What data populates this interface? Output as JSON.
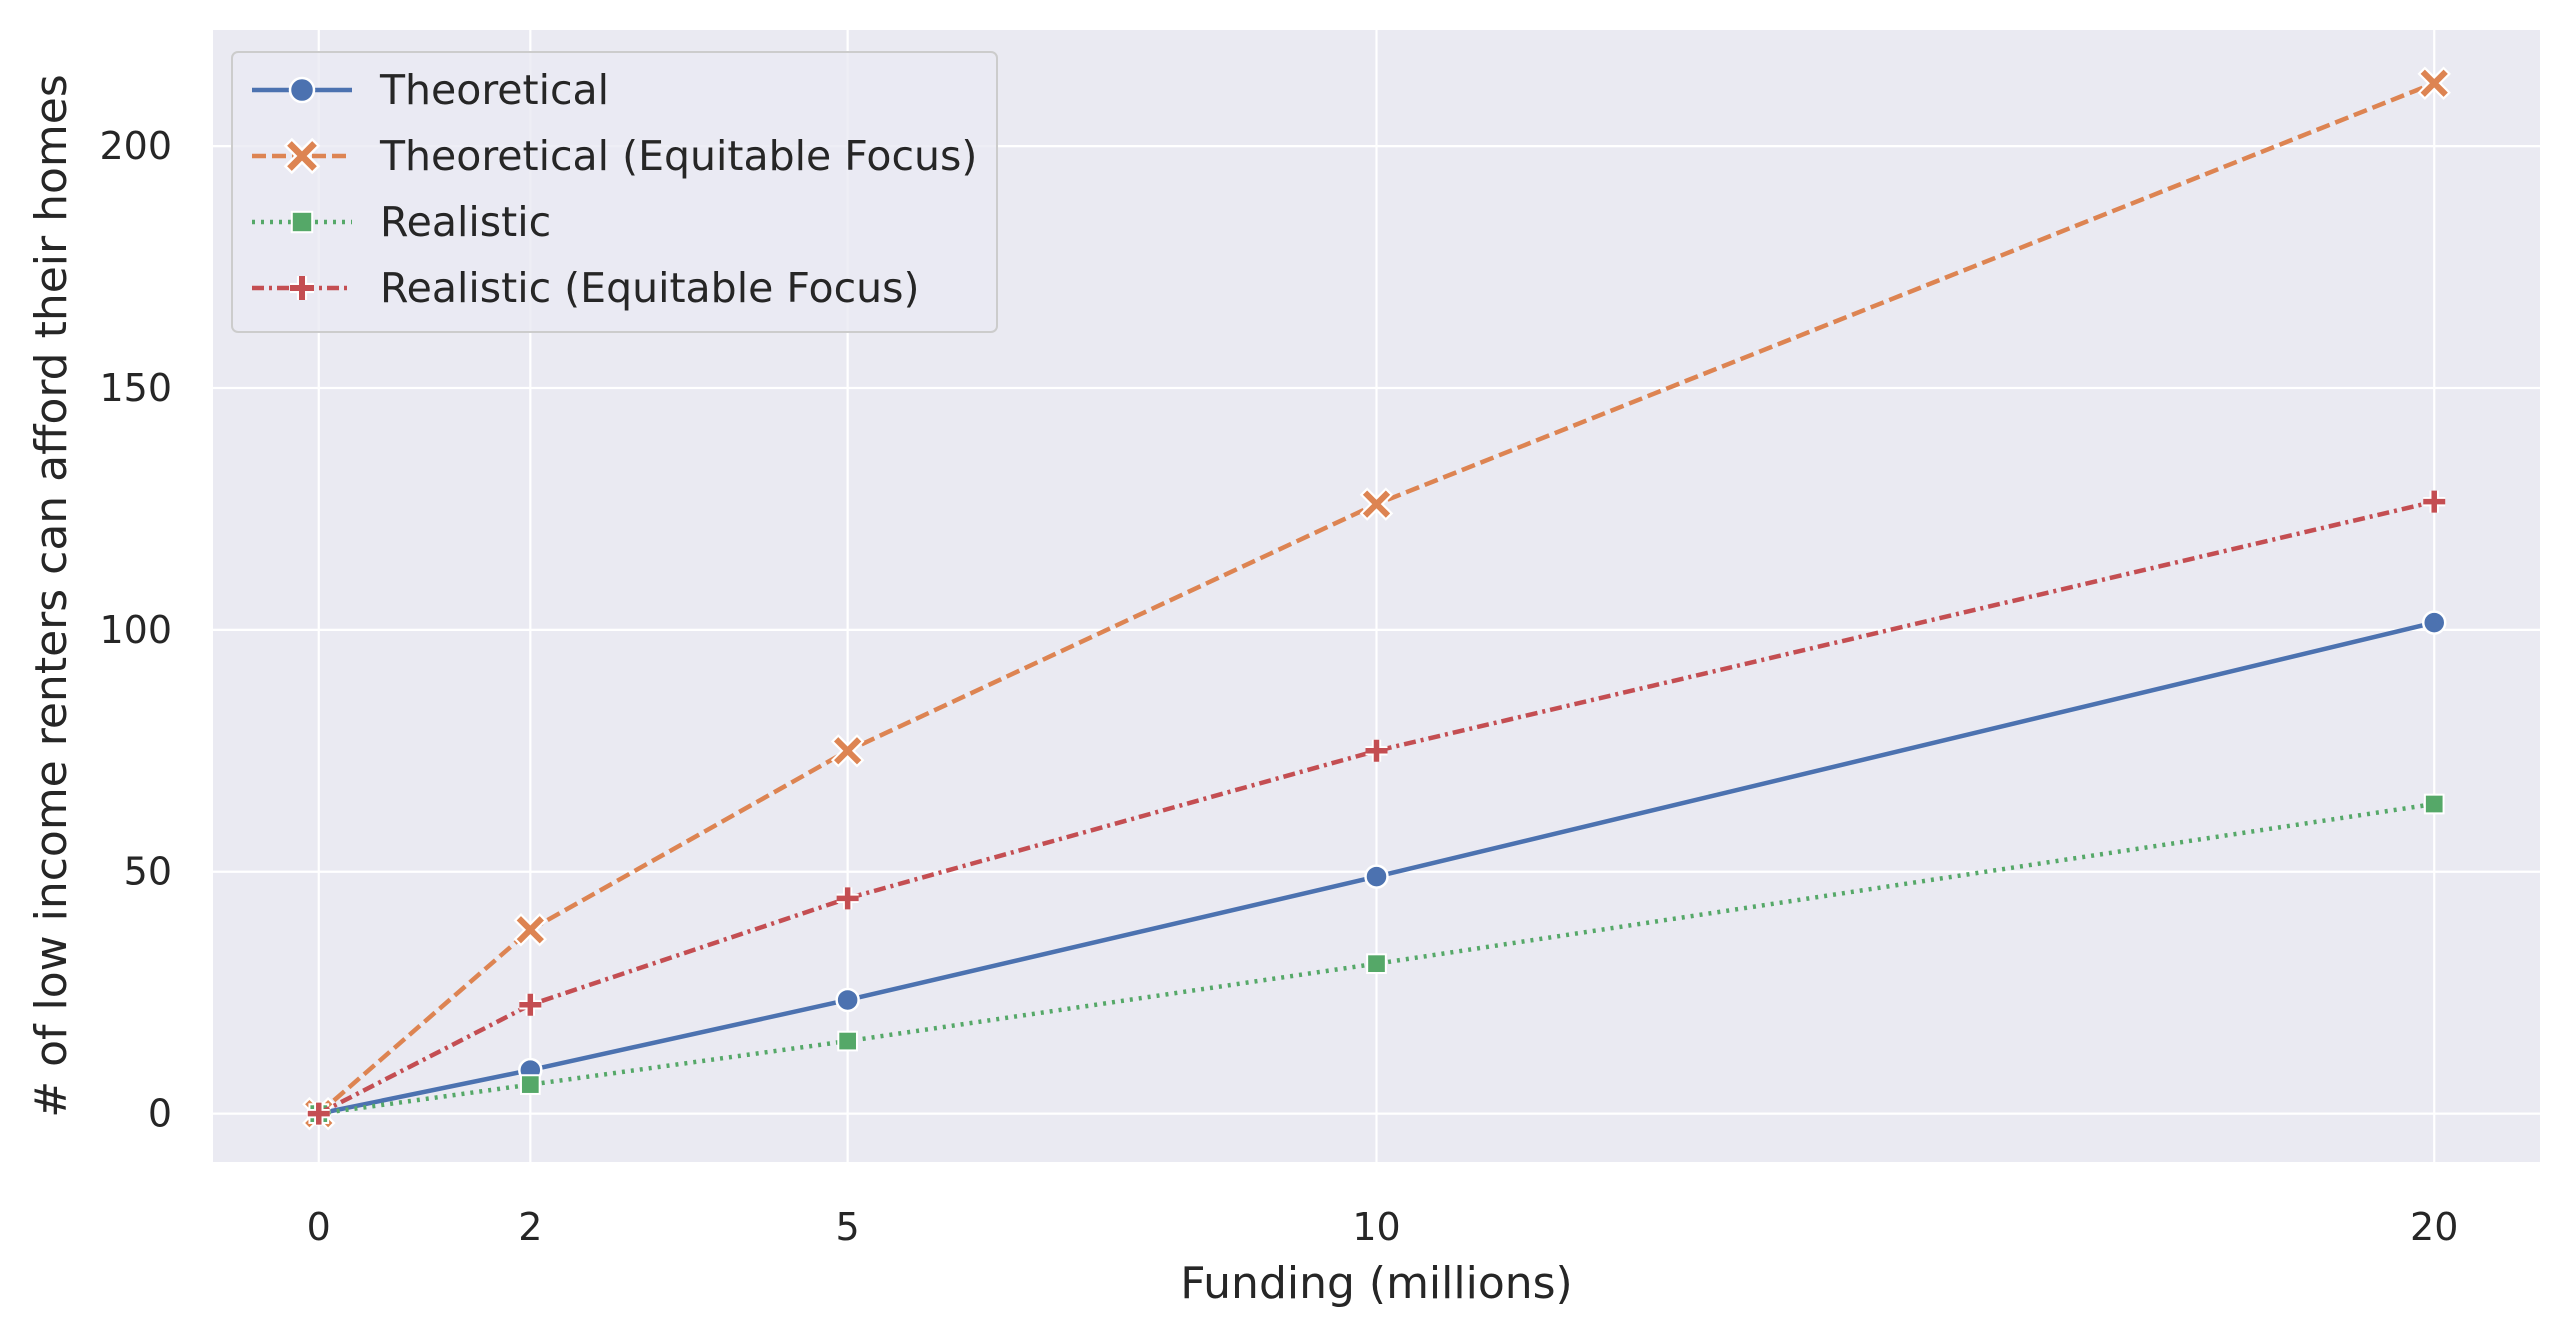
{
  "chart_data": {
    "type": "line",
    "xlabel": "Funding (millions)",
    "ylabel": "# of low income renters can afford their homes",
    "x": [
      0,
      2,
      5,
      10,
      20
    ],
    "xticks": [
      0,
      2,
      5,
      10,
      20
    ],
    "yticks": [
      0,
      50,
      100,
      150,
      200
    ],
    "xlim": [
      -1,
      21
    ],
    "ylim": [
      -10,
      224
    ],
    "grid": true,
    "legend_position": "top-left",
    "background": "#EAEAF2",
    "series": [
      {
        "name": "Theoretical",
        "values": [
          0,
          9,
          23.5,
          49,
          101.5
        ],
        "color": "#4C72B0",
        "dash": "solid",
        "marker": "circle"
      },
      {
        "name": "Theoretical (Equitable Focus)",
        "values": [
          0,
          38,
          75,
          126,
          213
        ],
        "color": "#DD8452",
        "dash": "dashed",
        "marker": "x"
      },
      {
        "name": "Realistic",
        "values": [
          0,
          6,
          15,
          31,
          64
        ],
        "color": "#55A868",
        "dash": "dotted",
        "marker": "square"
      },
      {
        "name": "Realistic (Equitable Focus)",
        "values": [
          0,
          22.5,
          44.5,
          75,
          126.5
        ],
        "color": "#C44E52",
        "dash": "dashdot",
        "marker": "plus"
      }
    ]
  }
}
